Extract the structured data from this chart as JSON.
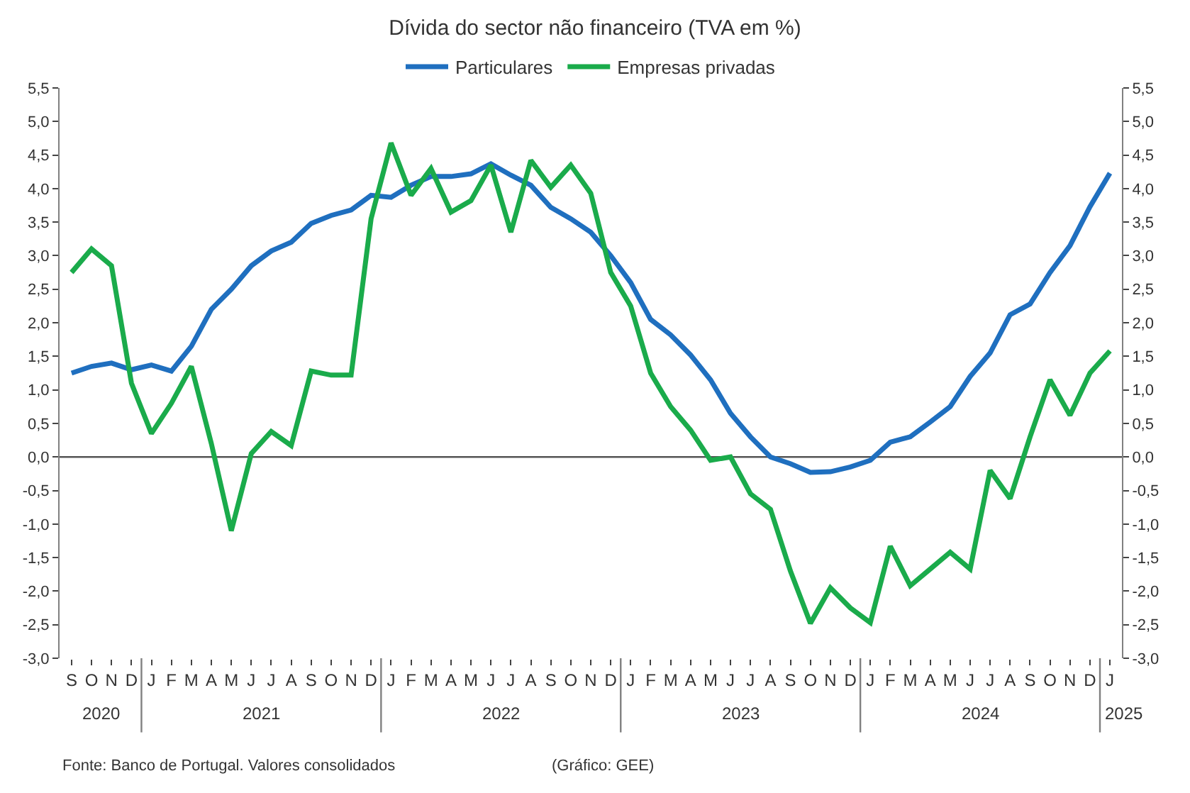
{
  "chart_data": {
    "type": "line",
    "title": "Dívida do sector não financeiro (TVA em %)",
    "categories": [
      "S",
      "O",
      "N",
      "D",
      "J",
      "F",
      "M",
      "A",
      "M",
      "J",
      "J",
      "A",
      "S",
      "O",
      "N",
      "D",
      "J",
      "F",
      "M",
      "A",
      "M",
      "J",
      "J",
      "A",
      "S",
      "O",
      "N",
      "D",
      "J",
      "F",
      "M",
      "A",
      "M",
      "J",
      "J",
      "A",
      "S",
      "O",
      "N",
      "D",
      "J",
      "F",
      "M",
      "A",
      "M",
      "J",
      "J",
      "A",
      "S",
      "O",
      "N",
      "D",
      "J"
    ],
    "ylim": [
      -3.0,
      5.5
    ],
    "yticks": [
      {
        "value": -3.0,
        "label": "-3,0"
      },
      {
        "value": -2.5,
        "label": "-2,5"
      },
      {
        "value": -2.0,
        "label": "-2,0"
      },
      {
        "value": -1.5,
        "label": "-1,5"
      },
      {
        "value": -1.0,
        "label": "-1,0"
      },
      {
        "value": -0.5,
        "label": "-0,5"
      },
      {
        "value": 0.0,
        "label": "0,0"
      },
      {
        "value": 0.5,
        "label": "0,5"
      },
      {
        "value": 1.0,
        "label": "1,0"
      },
      {
        "value": 1.5,
        "label": "1,5"
      },
      {
        "value": 2.0,
        "label": "2,0"
      },
      {
        "value": 2.5,
        "label": "2,5"
      },
      {
        "value": 3.0,
        "label": "3,0"
      },
      {
        "value": 3.5,
        "label": "3,5"
      },
      {
        "value": 4.0,
        "label": "4,0"
      },
      {
        "value": 4.5,
        "label": "4,5"
      },
      {
        "value": 5.0,
        "label": "5,0"
      },
      {
        "value": 5.5,
        "label": "5,5"
      }
    ],
    "y2lim": [
      -3.0,
      5.5
    ],
    "y2ticks": [
      {
        "value": -3.0,
        "label": "-3,0"
      },
      {
        "value": -2.5,
        "label": "-2,5"
      },
      {
        "value": -2.0,
        "label": "-2,0"
      },
      {
        "value": -1.5,
        "label": "-1,5"
      },
      {
        "value": -1.0,
        "label": "-1,0"
      },
      {
        "value": -0.5,
        "label": "-0,5"
      },
      {
        "value": 0.0,
        "label": "0,0"
      },
      {
        "value": 0.5,
        "label": "0,5"
      },
      {
        "value": 1.0,
        "label": "1,0"
      },
      {
        "value": 1.5,
        "label": "1,5"
      },
      {
        "value": 2.0,
        "label": "2,0"
      },
      {
        "value": 2.5,
        "label": "2,5"
      },
      {
        "value": 3.0,
        "label": "3,0"
      },
      {
        "value": 3.5,
        "label": "3,5"
      },
      {
        "value": 4.0,
        "label": "4,0"
      },
      {
        "value": 4.5,
        "label": "4,5"
      },
      {
        "value": 5.0,
        "label": "5,0"
      },
      {
        "value": 5.5,
        "label": "5,5"
      }
    ],
    "series": [
      {
        "name": "Particulares",
        "color": "#1f6fbf",
        "values": [
          1.25,
          1.35,
          1.4,
          1.3,
          1.37,
          1.28,
          1.65,
          2.2,
          2.5,
          2.85,
          3.07,
          3.2,
          3.48,
          3.6,
          3.68,
          3.9,
          3.87,
          4.05,
          4.18,
          4.18,
          4.22,
          4.37,
          4.2,
          4.05,
          3.72,
          3.55,
          3.35,
          3.0,
          2.6,
          2.05,
          1.82,
          1.52,
          1.15,
          0.65,
          0.3,
          0.0,
          -0.1,
          -0.23,
          -0.22,
          -0.15,
          -0.05,
          0.22,
          0.3,
          0.52,
          0.75,
          1.2,
          1.55,
          2.12,
          2.28,
          2.75,
          3.15,
          3.73,
          4.23
        ]
      },
      {
        "name": "Empresas privadas",
        "color": "#1aab4b",
        "values": [
          2.75,
          3.1,
          2.85,
          1.1,
          0.35,
          0.8,
          1.35,
          0.2,
          -1.1,
          0.05,
          0.38,
          0.17,
          1.28,
          1.22,
          1.22,
          3.55,
          4.68,
          3.9,
          4.3,
          3.65,
          3.82,
          4.35,
          3.35,
          4.42,
          4.02,
          4.35,
          3.93,
          2.75,
          2.25,
          1.25,
          0.75,
          0.4,
          -0.05,
          0.0,
          -0.55,
          -0.78,
          -1.7,
          -2.48,
          -1.95,
          -2.25,
          -2.47,
          -1.33,
          -1.92,
          -1.67,
          -1.42,
          -1.67,
          -0.2,
          -0.62,
          0.3,
          1.15,
          0.62,
          1.25,
          1.58
        ]
      }
    ],
    "ref_lines": [
      {
        "axis": "y",
        "value": 0.0,
        "color": "#555555"
      }
    ],
    "legend": "top",
    "grid": false,
    "marker": "none",
    "line_style": "solid",
    "annotations": [
      "2020",
      "2021",
      "2022",
      "2023",
      "2024",
      "2025",
      "Fonte: Banco de Portugal. Valores consolidados",
      "(Gráfico: GEE)"
    ]
  }
}
